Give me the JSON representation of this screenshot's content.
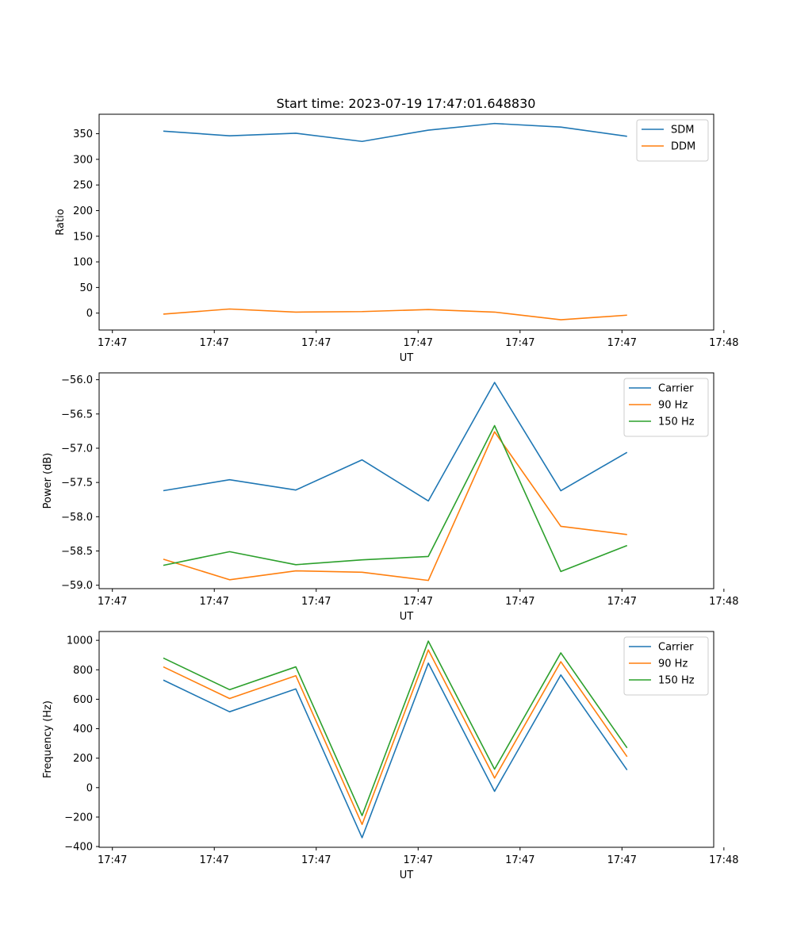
{
  "figure": {
    "title": "Start time: 2023-07-19 17:47:01.648830"
  },
  "chart_data": [
    {
      "type": "line",
      "title": "Start time: 2023-07-19 17:47:01.648830",
      "xlabel": "UT",
      "ylabel": "Ratio",
      "x_tick_labels": [
        "17:47",
        "17:47",
        "17:47",
        "17:47",
        "17:47",
        "17:47",
        "17:48"
      ],
      "x_tick_positions": [
        0,
        1,
        2,
        3,
        4,
        5,
        6
      ],
      "x": [
        0.5,
        1.15,
        1.8,
        2.45,
        3.1,
        3.75,
        4.4,
        5.05
      ],
      "xlim": [
        -0.13,
        5.9
      ],
      "ylim": [
        -33,
        388
      ],
      "yticks": [
        0,
        50,
        100,
        150,
        200,
        250,
        300,
        350
      ],
      "legend_position": "top-right",
      "series": [
        {
          "name": "SDM",
          "color": "#1f77b4",
          "values": [
            355,
            346,
            351,
            335,
            357,
            370,
            363,
            345
          ]
        },
        {
          "name": "DDM",
          "color": "#ff7f0e",
          "values": [
            -2,
            8,
            2,
            3,
            7,
            2,
            -13,
            -4
          ]
        }
      ]
    },
    {
      "type": "line",
      "xlabel": "UT",
      "ylabel": "Power (dB)",
      "x_tick_labels": [
        "17:47",
        "17:47",
        "17:47",
        "17:47",
        "17:47",
        "17:47",
        "17:48"
      ],
      "x_tick_positions": [
        0,
        1,
        2,
        3,
        4,
        5,
        6
      ],
      "x": [
        0.5,
        1.15,
        1.8,
        2.45,
        3.1,
        3.75,
        4.4,
        5.05
      ],
      "xlim": [
        -0.13,
        5.9
      ],
      "ylim": [
        -59.05,
        -55.9
      ],
      "yticks": [
        -59.0,
        -58.5,
        -58.0,
        -57.5,
        -57.0,
        -56.5,
        -56.0
      ],
      "legend_position": "top-right",
      "series": [
        {
          "name": "Carrier",
          "color": "#1f77b4",
          "values": [
            -57.62,
            -57.46,
            -57.61,
            -57.17,
            -57.77,
            -56.04,
            -57.62,
            -57.06
          ]
        },
        {
          "name": "90 Hz",
          "color": "#ff7f0e",
          "values": [
            -58.62,
            -58.92,
            -58.79,
            -58.81,
            -58.93,
            -56.76,
            -58.14,
            -58.26
          ]
        },
        {
          "name": "150 Hz",
          "color": "#2ca02c",
          "values": [
            -58.71,
            -58.51,
            -58.7,
            -58.63,
            -58.58,
            -56.67,
            -58.8,
            -58.42
          ]
        }
      ]
    },
    {
      "type": "line",
      "xlabel": "UT",
      "ylabel": "Frequency (Hz)",
      "x_tick_labels": [
        "17:47",
        "17:47",
        "17:47",
        "17:47",
        "17:47",
        "17:47",
        "17:48"
      ],
      "x_tick_positions": [
        0,
        1,
        2,
        3,
        4,
        5,
        6
      ],
      "x": [
        0.5,
        1.15,
        1.8,
        2.45,
        3.1,
        3.75,
        4.4,
        5.05
      ],
      "xlim": [
        -0.13,
        5.9
      ],
      "ylim": [
        -405,
        1060
      ],
      "yticks": [
        -400,
        -200,
        0,
        200,
        400,
        600,
        800,
        1000
      ],
      "legend_position": "top-right",
      "series": [
        {
          "name": "Carrier",
          "color": "#1f77b4",
          "values": [
            730,
            515,
            670,
            -340,
            845,
            -25,
            765,
            120
          ]
        },
        {
          "name": "90 Hz",
          "color": "#ff7f0e",
          "values": [
            820,
            605,
            760,
            -250,
            935,
            65,
            855,
            210
          ]
        },
        {
          "name": "150 Hz",
          "color": "#2ca02c",
          "values": [
            880,
            665,
            820,
            -190,
            995,
            125,
            915,
            270
          ]
        }
      ]
    }
  ]
}
